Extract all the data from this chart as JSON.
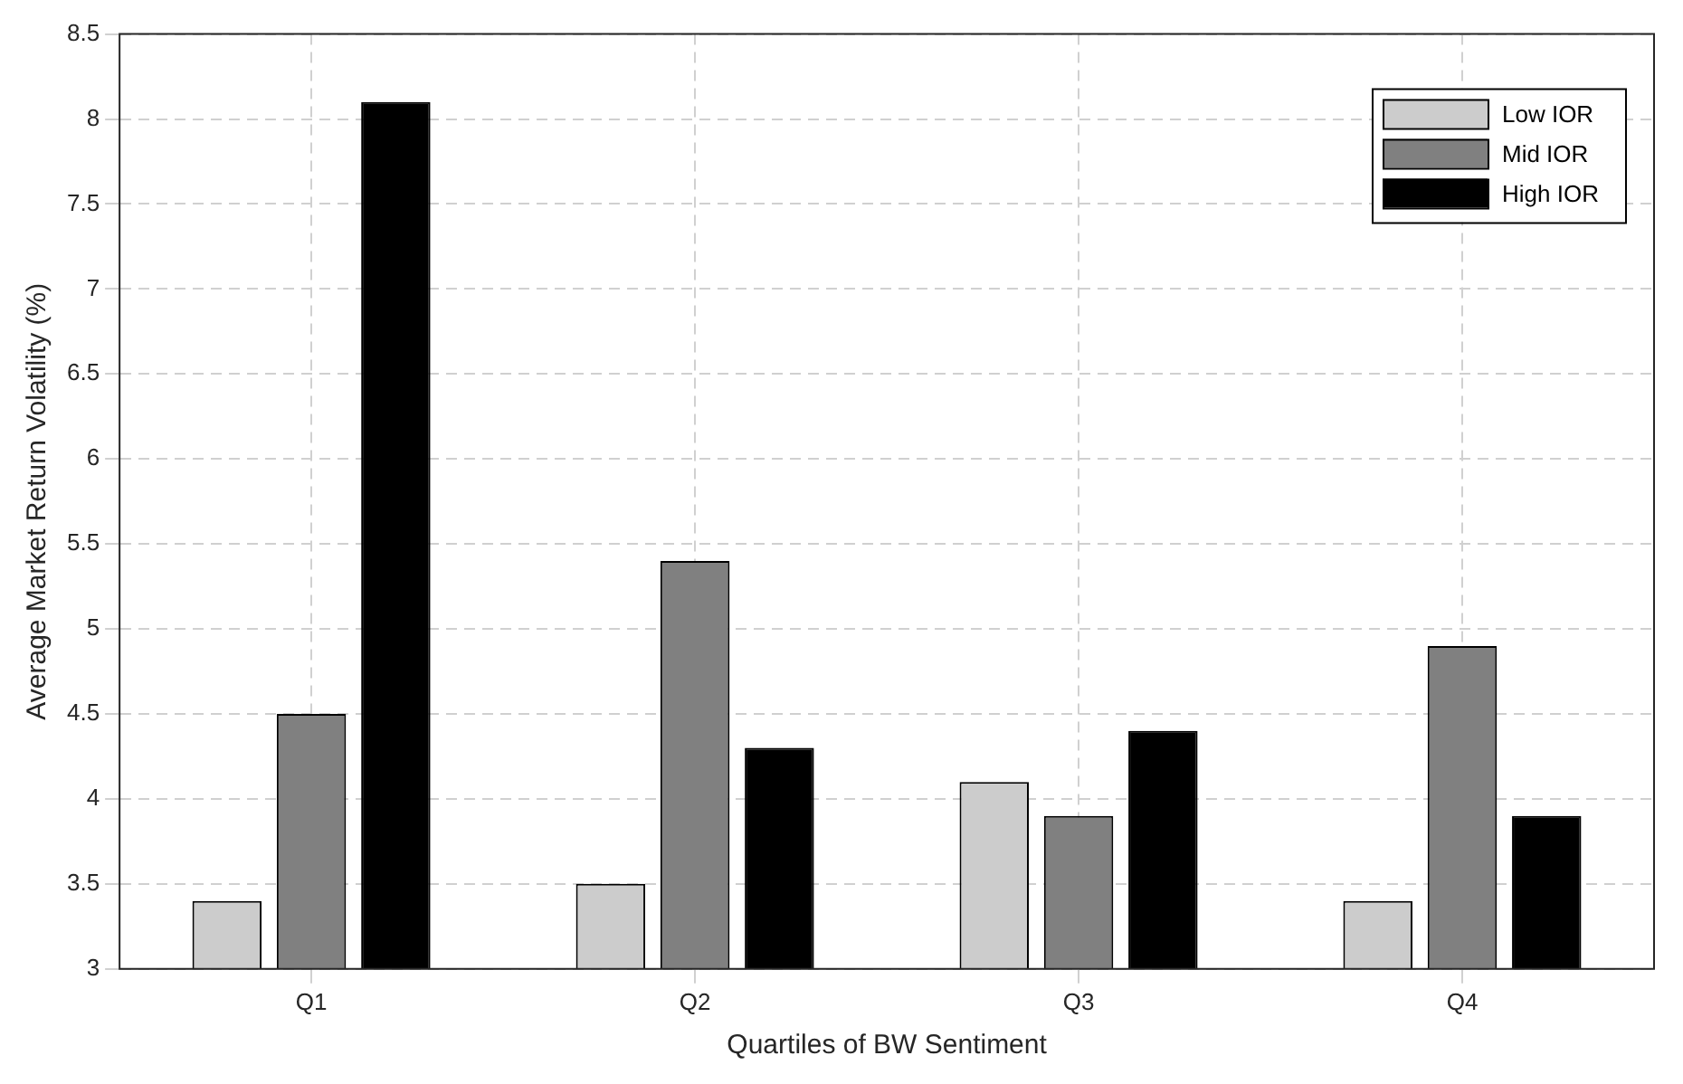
{
  "chart_data": {
    "type": "bar",
    "xlabel": "Quartiles of BW Sentiment",
    "ylabel": "Average Market Return Volatility (%)",
    "categories": [
      "Q1",
      "Q2",
      "Q3",
      "Q4"
    ],
    "series": [
      {
        "name": "Low IOR",
        "color": "#cccccc",
        "values": [
          3.4,
          3.5,
          4.1,
          3.4
        ]
      },
      {
        "name": "Mid IOR",
        "color": "#808080",
        "values": [
          4.5,
          5.4,
          3.9,
          4.9
        ]
      },
      {
        "name": "High IOR",
        "color": "#000000",
        "values": [
          8.1,
          4.3,
          4.4,
          3.9
        ]
      }
    ],
    "ylim": [
      3,
      8.5
    ],
    "yticks": [
      3,
      3.5,
      4,
      4.5,
      5,
      5.5,
      6,
      6.5,
      7,
      7.5,
      8,
      8.5
    ],
    "grid": true,
    "legend": "top right"
  }
}
